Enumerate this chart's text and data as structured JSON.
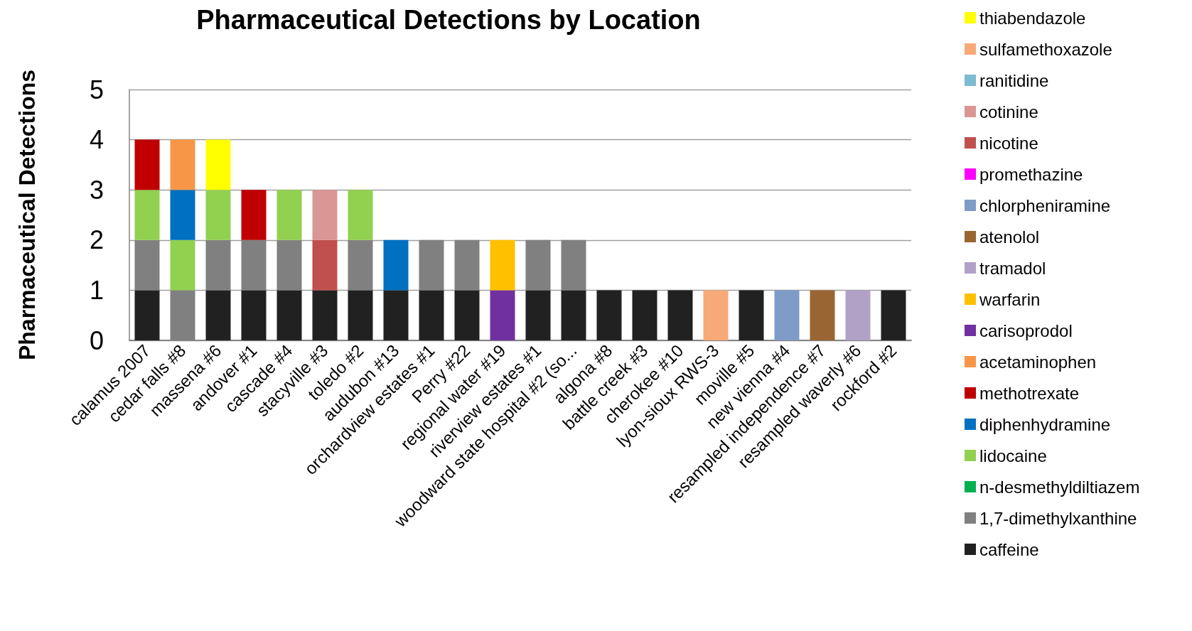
{
  "chart_data": {
    "type": "bar",
    "title": "Pharmaceutical Detections by Location",
    "ylabel": "Pharmaceutical Detections",
    "categories": [
      "calamus 2007",
      "cedar falls #8",
      "massena #6",
      "andover #1",
      "cascade #4",
      "stacyville #3",
      "toledo #2",
      "audubon #13",
      "orchardview estates #1",
      "Perry #22",
      "regional water #19",
      "riverview estates #1",
      "woodward state hospital #2 (so...",
      "algona #8",
      "battle creek #3",
      "cherokee #10",
      "lyon-sioux RWS-3",
      "moville #5",
      "new vienna #4",
      "resampled independence #7",
      "resampled waverly #6",
      "rockford #2"
    ],
    "stacked": true,
    "series": [
      {
        "name": "caffeine",
        "color": "#212121",
        "values": [
          1,
          null,
          1,
          1,
          1,
          1,
          1,
          1,
          1,
          1,
          null,
          1,
          1,
          1,
          1,
          1,
          null,
          1,
          null,
          null,
          null,
          1
        ]
      },
      {
        "name": "1,7-dimethylxanthine",
        "color": "#808080",
        "values": [
          1,
          1,
          1,
          1,
          1,
          null,
          1,
          null,
          1,
          1,
          null,
          1,
          1,
          null,
          null,
          null,
          null,
          null,
          null,
          null,
          null,
          null
        ]
      },
      {
        "name": "n-desmethyldiltiazem",
        "color": "#00b050",
        "values": [
          null,
          null,
          null,
          null,
          null,
          null,
          null,
          null,
          null,
          null,
          null,
          null,
          null,
          null,
          null,
          null,
          null,
          null,
          null,
          null,
          null,
          null
        ]
      },
      {
        "name": "lidocaine",
        "color": "#92d050",
        "values": [
          1,
          1,
          1,
          null,
          1,
          null,
          1,
          null,
          null,
          null,
          null,
          null,
          null,
          null,
          null,
          null,
          null,
          null,
          null,
          null,
          null,
          null
        ]
      },
      {
        "name": "diphenhydramine",
        "color": "#0070c0",
        "values": [
          null,
          1,
          null,
          null,
          null,
          null,
          null,
          1,
          null,
          null,
          null,
          null,
          null,
          null,
          null,
          null,
          null,
          null,
          null,
          null,
          null,
          null
        ]
      },
      {
        "name": "methotrexate",
        "color": "#c00000",
        "values": [
          1,
          null,
          null,
          1,
          null,
          null,
          null,
          null,
          null,
          null,
          null,
          null,
          null,
          null,
          null,
          null,
          null,
          null,
          null,
          null,
          null,
          null
        ]
      },
      {
        "name": "acetaminophen",
        "color": "#f79646",
        "values": [
          null,
          1,
          null,
          null,
          null,
          null,
          null,
          null,
          null,
          null,
          null,
          null,
          null,
          null,
          null,
          null,
          null,
          null,
          null,
          null,
          null,
          null
        ]
      },
      {
        "name": "carisoprodol",
        "color": "#7030a0",
        "values": [
          null,
          null,
          null,
          null,
          null,
          null,
          null,
          null,
          null,
          null,
          1,
          null,
          null,
          null,
          null,
          null,
          null,
          null,
          null,
          null,
          null,
          null
        ]
      },
      {
        "name": "warfarin",
        "color": "#ffc000",
        "values": [
          null,
          null,
          null,
          null,
          null,
          null,
          null,
          null,
          null,
          null,
          1,
          null,
          null,
          null,
          null,
          null,
          null,
          null,
          null,
          null,
          null,
          null
        ]
      },
      {
        "name": "tramadol",
        "color": "#b2a1c7",
        "values": [
          null,
          null,
          null,
          null,
          null,
          null,
          null,
          null,
          null,
          null,
          null,
          null,
          null,
          null,
          null,
          null,
          null,
          null,
          null,
          null,
          1,
          null
        ]
      },
      {
        "name": "atenolol",
        "color": "#996633",
        "values": [
          null,
          null,
          null,
          null,
          null,
          null,
          null,
          null,
          null,
          null,
          null,
          null,
          null,
          null,
          null,
          null,
          null,
          null,
          null,
          1,
          null,
          null
        ]
      },
      {
        "name": "chlorpheniramine",
        "color": "#7f9bc8",
        "values": [
          null,
          null,
          null,
          null,
          null,
          null,
          null,
          null,
          null,
          null,
          null,
          null,
          null,
          null,
          null,
          null,
          null,
          null,
          1,
          null,
          null,
          null
        ]
      },
      {
        "name": "promethazine",
        "color": "#ff00ff",
        "values": [
          null,
          null,
          null,
          null,
          null,
          null,
          null,
          null,
          null,
          null,
          null,
          null,
          null,
          null,
          null,
          null,
          null,
          null,
          null,
          null,
          null,
          null
        ]
      },
      {
        "name": "nicotine",
        "color": "#c0504d",
        "values": [
          null,
          null,
          null,
          null,
          null,
          1,
          null,
          null,
          null,
          null,
          null,
          null,
          null,
          null,
          null,
          null,
          null,
          null,
          null,
          null,
          null,
          null
        ]
      },
      {
        "name": "cotinine",
        "color": "#da9694",
        "values": [
          null,
          null,
          null,
          null,
          null,
          1,
          null,
          null,
          null,
          null,
          null,
          null,
          null,
          null,
          null,
          null,
          null,
          null,
          null,
          null,
          null,
          null
        ]
      },
      {
        "name": "ranitidine",
        "color": "#7cbbd0",
        "values": [
          null,
          null,
          null,
          null,
          null,
          null,
          null,
          null,
          null,
          null,
          null,
          null,
          null,
          null,
          null,
          null,
          null,
          null,
          null,
          null,
          null,
          null
        ]
      },
      {
        "name": "sulfamethoxazole",
        "color": "#f7a978",
        "values": [
          null,
          null,
          null,
          null,
          null,
          null,
          null,
          null,
          null,
          null,
          null,
          null,
          null,
          null,
          null,
          null,
          1,
          null,
          null,
          null,
          null,
          null
        ]
      },
      {
        "name": "thiabendazole",
        "color": "#ffff00",
        "values": [
          null,
          null,
          1,
          null,
          null,
          null,
          null,
          null,
          null,
          null,
          null,
          null,
          null,
          null,
          null,
          null,
          null,
          null,
          null,
          null,
          null,
          null
        ]
      }
    ],
    "ylim": [
      0,
      5
    ],
    "yticks": [
      0,
      1,
      2,
      3,
      4,
      5
    ],
    "grid": "y",
    "legend": "right"
  }
}
